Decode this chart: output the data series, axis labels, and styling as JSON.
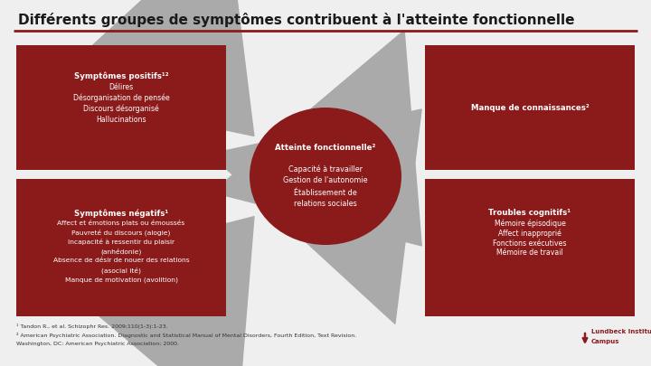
{
  "title": "Différents groupes de symptômes contribuent à l'atteinte fonctionnelle",
  "bg_color": "#efefef",
  "box_color": "#8B1A1A",
  "text_color": "#ffffff",
  "arrow_color": "#aaaaaa",
  "box_top_left": {
    "title": "Symptômes positifs¹²",
    "lines": [
      "Délires",
      "Désorganisation de pensée",
      "Discours désorganisé",
      "Hallucinations"
    ]
  },
  "box_bottom_left": {
    "title": "Symptômes négatifs¹",
    "lines": [
      "Affect et émotions plats ou émoussés",
      "Pauvreté du discours (alogie)",
      "Incapacité à ressentir du plaisir",
      "(anhédonie)",
      "Absence de désir de nouer des relations",
      "(asocial ité)",
      "Manque de motivation (avolition)"
    ]
  },
  "box_top_right": {
    "title": "Manque de connaissances²",
    "lines": []
  },
  "box_bottom_right": {
    "title": "Troubles cognitifs¹",
    "lines": [
      "Mémoire épisodique",
      "Affect inapproprié",
      "Fonctions exécutives",
      "Mémoire de travail"
    ]
  },
  "center_ellipse": {
    "title": "Atteinte fonctionnelle²",
    "lines": [
      "Capacité à travailler",
      "Gestion de l'autonomie",
      "Établissement de",
      "relations sociales"
    ]
  },
  "footnote1": "¹ Tandon R., et al. Schizophr Res. 2009;110(1-3):1-23.",
  "footnote2": "² American Psychiatric Association. Diagnostic and Statistical Manual of Mental Disorders, Fourth Edition, Text Revision.",
  "footnote3": "Washington, DC: American Psychiatric Association; 2000."
}
